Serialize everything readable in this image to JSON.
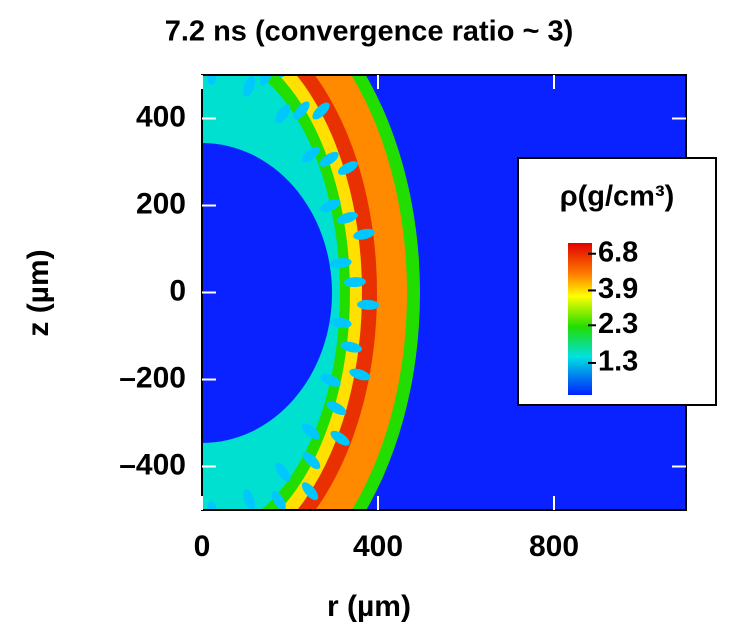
{
  "chart_data": {
    "type": "image",
    "title": "7.2 ns (convergence ratio ~ 3)",
    "x_label": "r (µm)",
    "y_label": "z (µm)",
    "xlim": [
      0,
      1100
    ],
    "ylim": [
      -500,
      500
    ],
    "xticks": [
      0,
      400,
      800
    ],
    "yticks": [
      400,
      200,
      0,
      {
        "value": -200,
        "label": "–200"
      },
      {
        "value": -400,
        "label": "–400"
      }
    ],
    "background": "#0a22ff",
    "colorbar": {
      "label": "ρ(g/cm³)",
      "log": true,
      "lim": [
        0.8,
        8
      ],
      "ticks": [
        6.8,
        3.9,
        2.3,
        1.3
      ]
    }
  }
}
